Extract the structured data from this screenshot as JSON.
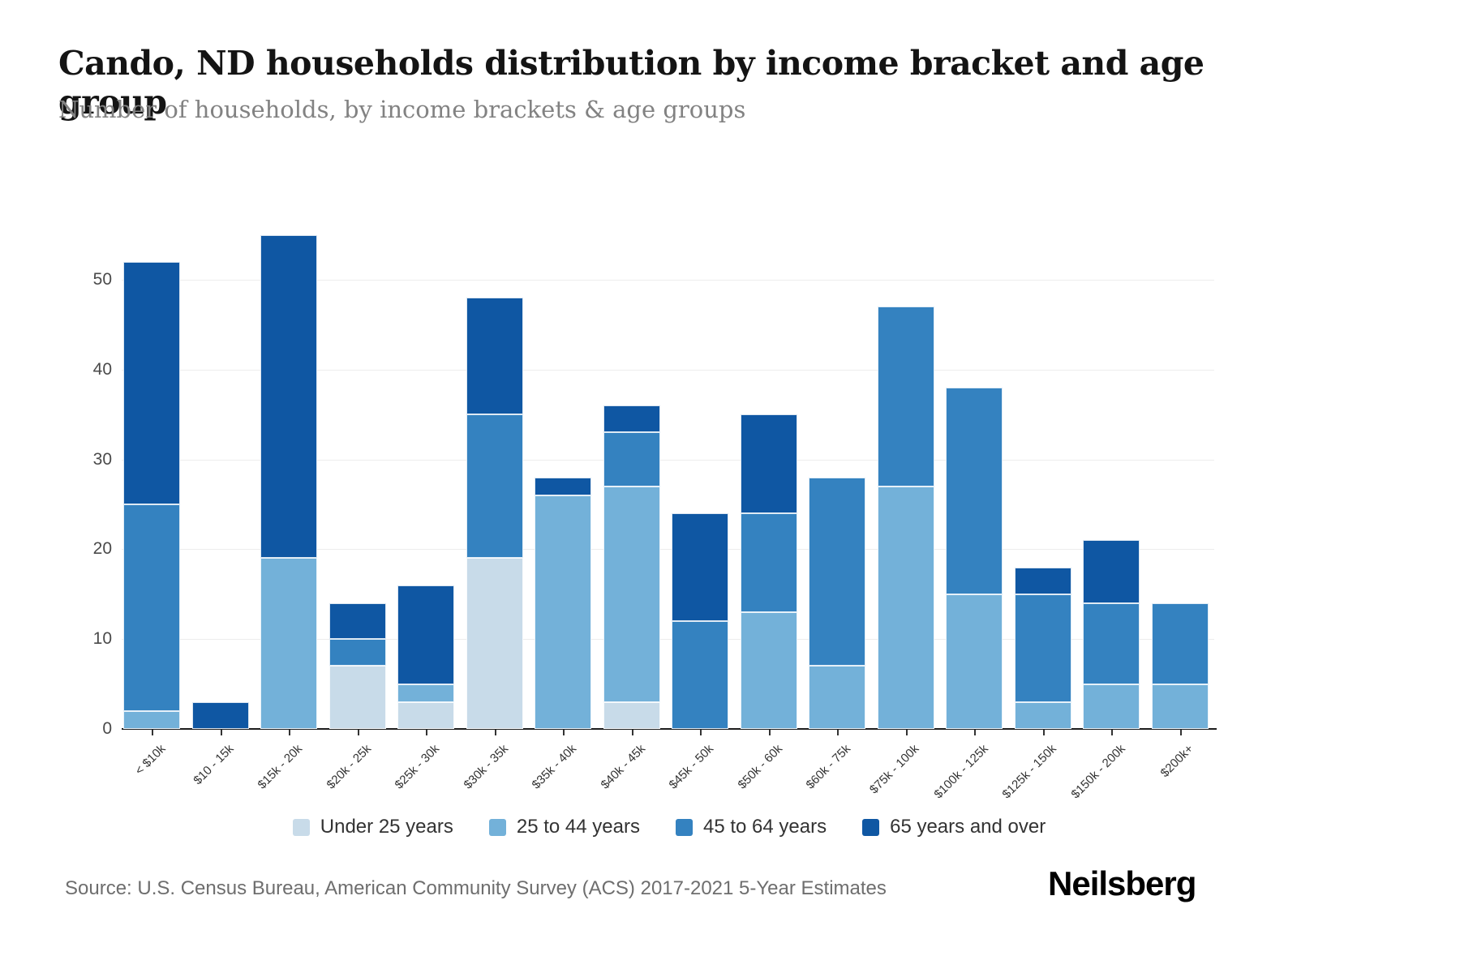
{
  "header": {
    "title": "Cando, ND households distribution by income bracket and age group",
    "subtitle": "Number of households, by income brackets & age groups"
  },
  "footer": {
    "source": "Source: U.S. Census Bureau, American Community Survey (ACS) 2017-2021 5-Year Estimates",
    "brand": "Neilsberg"
  },
  "chart_data": {
    "type": "bar",
    "stacked": true,
    "title": "Cando, ND households distribution by income bracket and age group",
    "xlabel": "",
    "ylabel": "Number of households",
    "grid": true,
    "legend_position": "bottom",
    "yticks": [
      0,
      10,
      20,
      30,
      40,
      50
    ],
    "ylim": [
      0,
      58
    ],
    "categories": [
      "< $10k",
      "$10 - 15k",
      "$15k - 20k",
      "$20k - 25k",
      "$25k - 30k",
      "$30k - 35k",
      "$35k - 40k",
      "$40k - 45k",
      "$45k - 50k",
      "$50k - 60k",
      "$60k - 75k",
      "$75k - 100k",
      "$100k - 125k",
      "$125k - 150k",
      "$150k - 200k",
      "$200k+"
    ],
    "series": [
      {
        "name": "Under 25 years",
        "color": "#c8dbe9",
        "values": [
          0,
          0,
          0,
          7,
          3,
          19,
          0,
          3,
          0,
          0,
          0,
          0,
          0,
          0,
          0,
          0
        ]
      },
      {
        "name": "25 to 44 years",
        "color": "#73b1d9",
        "values": [
          2,
          0,
          19,
          0,
          2,
          0,
          26,
          24,
          0,
          13,
          7,
          27,
          15,
          3,
          5,
          5
        ]
      },
      {
        "name": "45 to 64 years",
        "color": "#3482c0",
        "values": [
          23,
          0,
          0,
          3,
          0,
          16,
          0,
          6,
          12,
          11,
          21,
          20,
          23,
          12,
          9,
          9
        ]
      },
      {
        "name": "65 years and over",
        "color": "#0f57a3",
        "values": [
          27,
          3,
          36,
          4,
          11,
          13,
          2,
          3,
          12,
          11,
          0,
          0,
          0,
          3,
          7,
          0
        ]
      }
    ],
    "totals": [
      52,
      3,
      55,
      14,
      16,
      48,
      28,
      36,
      24,
      35,
      28,
      47,
      38,
      18,
      21,
      14
    ]
  }
}
